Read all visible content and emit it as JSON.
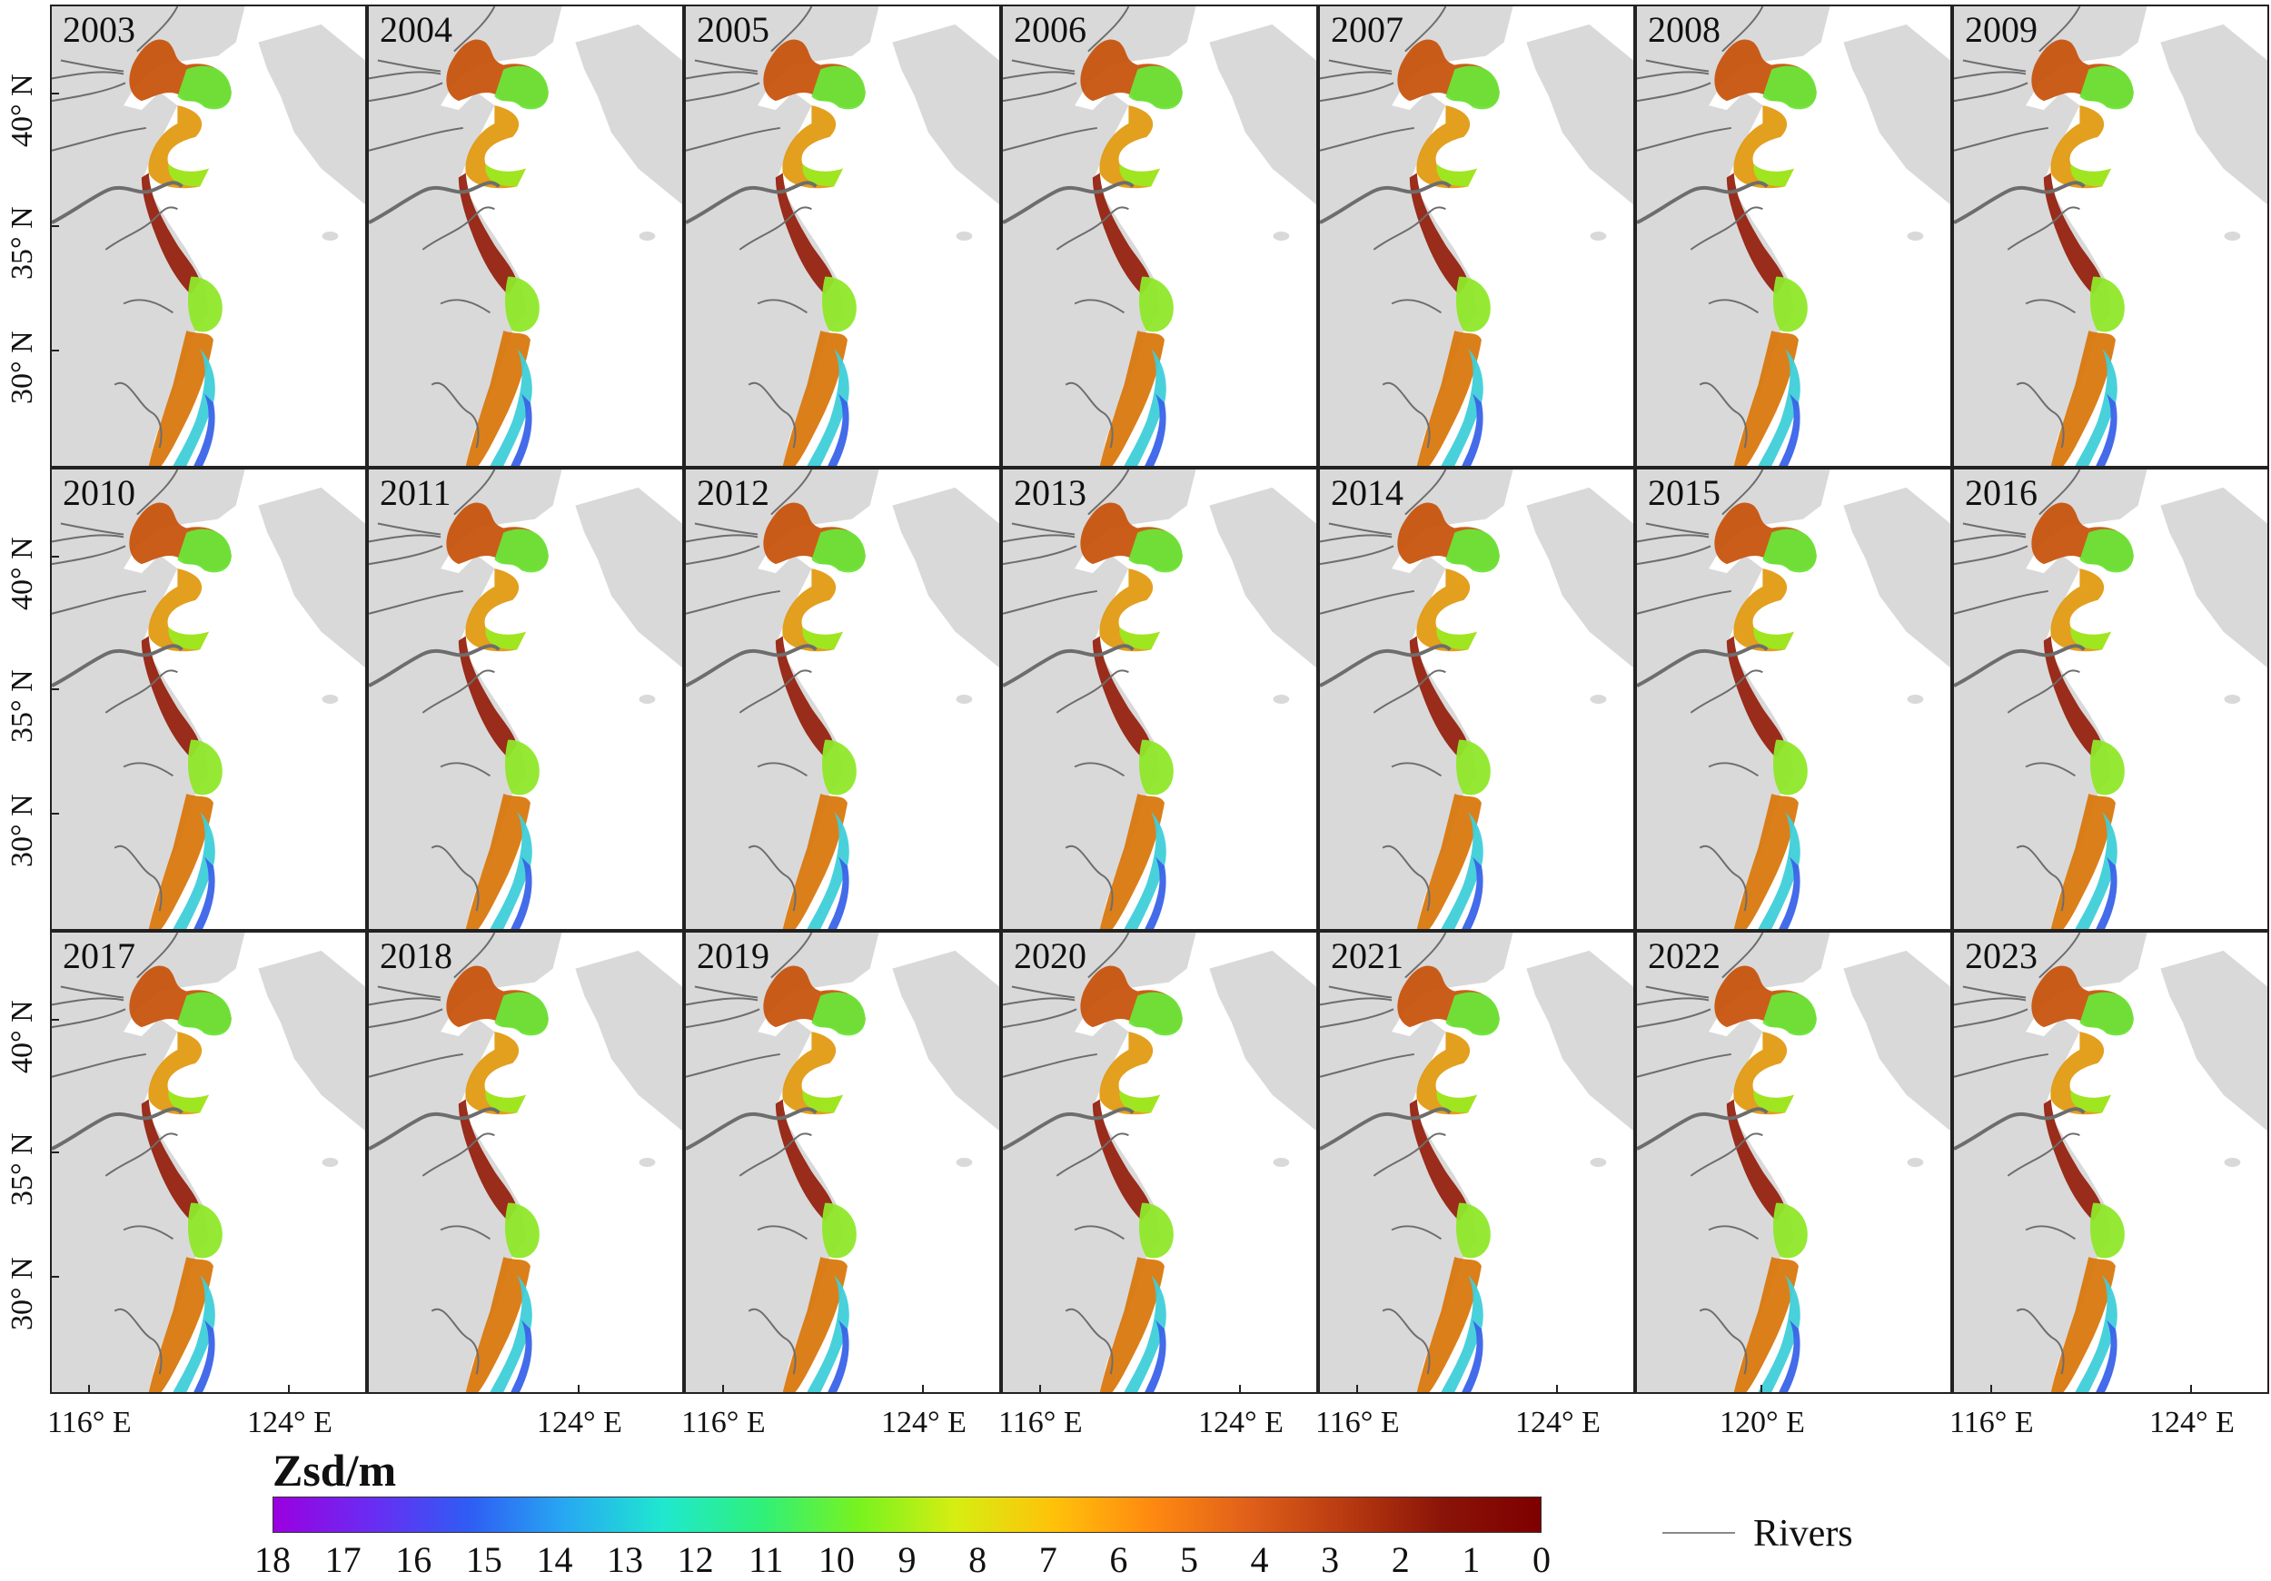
{
  "panels": [
    {
      "year": "2003"
    },
    {
      "year": "2004"
    },
    {
      "year": "2005"
    },
    {
      "year": "2006"
    },
    {
      "year": "2007"
    },
    {
      "year": "2008"
    },
    {
      "year": "2009"
    },
    {
      "year": "2010"
    },
    {
      "year": "2011"
    },
    {
      "year": "2012"
    },
    {
      "year": "2013"
    },
    {
      "year": "2014"
    },
    {
      "year": "2015"
    },
    {
      "year": "2016"
    },
    {
      "year": "2017"
    },
    {
      "year": "2018"
    },
    {
      "year": "2019"
    },
    {
      "year": "2020"
    },
    {
      "year": "2021"
    },
    {
      "year": "2022"
    },
    {
      "year": "2023"
    }
  ],
  "lat_labels": [
    "40° N",
    "35° N",
    "30° N"
  ],
  "lon_labels": [
    [
      "116° E",
      "124° E"
    ],
    [
      "124° E"
    ],
    [
      "116° E",
      "124° E"
    ],
    [
      "116° E",
      "124° E"
    ],
    [
      "116° E",
      "124° E"
    ],
    [
      "120° E"
    ],
    [
      "116° E",
      "124° E"
    ]
  ],
  "legend": {
    "title": "Zsd/m",
    "ticks": [
      "18",
      "17",
      "16",
      "15",
      "14",
      "13",
      "12",
      "11",
      "10",
      "9",
      "8",
      "7",
      "6",
      "5",
      "4",
      "3",
      "2",
      "1",
      "0"
    ],
    "colors": [
      "#9a00e0",
      "#6a2cf2",
      "#2f5cf4",
      "#27a9f2",
      "#1fe8cf",
      "#2ff07a",
      "#78f21f",
      "#d6ee12",
      "#ffc20a",
      "#ff8a10",
      "#e0601a",
      "#b83a10",
      "#8a1408",
      "#7e0000"
    ],
    "rivers_label": "Rivers"
  },
  "colors": {
    "land": "#d9d9d9",
    "ocean": "#ffffff",
    "river": "#6d6d6d",
    "frame": "#222222"
  }
}
